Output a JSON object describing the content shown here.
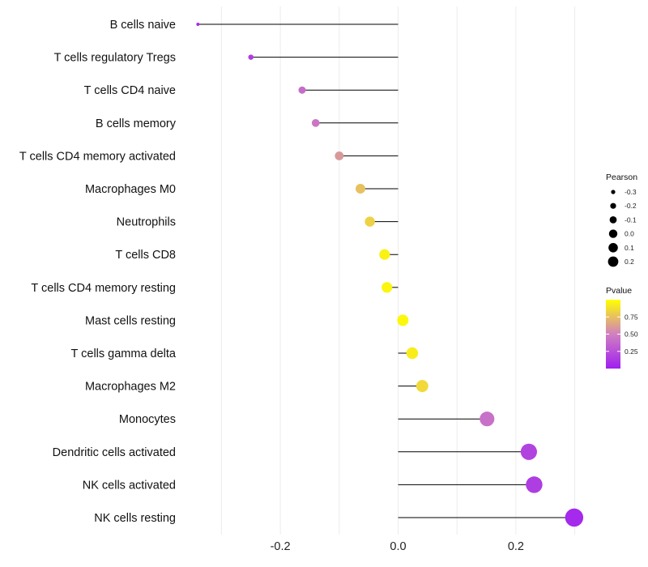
{
  "chart_data": {
    "type": "scatter",
    "subtype": "lollipop",
    "title": "",
    "xlabel": "",
    "ylabel": "",
    "xlim": [
      -0.35,
      0.3
    ],
    "x_ticks": [
      -0.2,
      0.0,
      0.2
    ],
    "x_tick_labels": [
      "-0.2",
      "0.0",
      "0.2"
    ],
    "minor_grid": [
      -0.3,
      -0.1,
      0.1,
      0.3
    ],
    "baseline": 0.0,
    "grid": true,
    "legend_position": "right",
    "categories": [
      "B cells naive",
      "T cells regulatory  Tregs",
      "T cells CD4 naive",
      "B cells memory",
      "T cells CD4 memory activated",
      "Macrophages M0",
      "Neutrophils",
      "T cells CD8",
      "T cells CD4 memory resting",
      "Mast cells resting",
      "T cells gamma delta",
      "Macrophages M2",
      "Monocytes",
      "Dendritic cells activated",
      "NK cells activated",
      "NK cells resting"
    ],
    "pearson": [
      -0.34,
      -0.25,
      -0.163,
      -0.14,
      -0.1,
      -0.064,
      -0.048,
      -0.023,
      -0.019,
      0.008,
      0.024,
      0.041,
      0.151,
      0.222,
      0.231,
      0.299
    ],
    "pvalue": [
      0.05,
      0.15,
      0.4,
      0.45,
      0.6,
      0.75,
      0.82,
      0.95,
      0.96,
      0.97,
      0.93,
      0.85,
      0.42,
      0.18,
      0.15,
      0.05
    ],
    "size_legend": {
      "title": "Pearson",
      "values": [
        -0.3,
        -0.2,
        -0.1,
        0.0,
        0.1,
        0.2
      ],
      "labels": [
        "-0.3",
        "-0.2",
        "-0.1",
        "0.0",
        "0.1",
        "0.2"
      ]
    },
    "color_legend": {
      "title": "Pvalue",
      "ticks": [
        0.75,
        0.5,
        0.25
      ],
      "labels": [
        "0.75",
        "0.50",
        "0.25"
      ],
      "range": [
        0.0,
        1.0
      ],
      "low_color": "#a020f0",
      "mid_color": "#d080c0",
      "high_color": "#ffff00"
    },
    "stem_color": "#000000",
    "grid_color": "#ececec"
  }
}
